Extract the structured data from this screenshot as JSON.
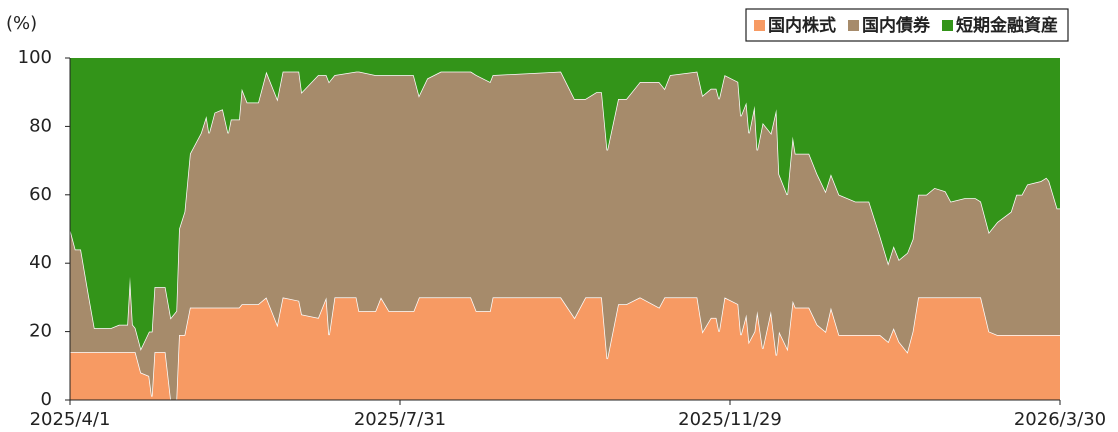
{
  "chart_data": {
    "type": "stacked_area",
    "y_axis_label": "(%)",
    "x": [
      "2025/4/1",
      "2025/4/3",
      "2025/4/5",
      "2025/4/8",
      "2025/4/10",
      "2025/4/16",
      "2025/4/19",
      "2025/4/22",
      "2025/4/23",
      "2025/4/24",
      "2025/4/25",
      "2025/4/27",
      "2025/4/30",
      "2025/5/1",
      "2025/5/2",
      "2025/5/6",
      "2025/5/8",
      "2025/5/10",
      "2025/5/11",
      "2025/5/13",
      "2025/5/15",
      "2025/5/19",
      "2025/5/21",
      "2025/5/22",
      "2025/5/24",
      "2025/5/27",
      "2025/5/29",
      "2025/5/30",
      "2025/6/2",
      "2025/6/3",
      "2025/6/5",
      "2025/6/9",
      "2025/6/12",
      "2025/6/16",
      "2025/6/18",
      "2025/6/24",
      "2025/6/25",
      "2025/7/1",
      "2025/7/4",
      "2025/7/5",
      "2025/7/7",
      "2025/7/15",
      "2025/7/16",
      "2025/7/22",
      "2025/7/24",
      "2025/7/27",
      "2025/7/30",
      "2025/8/5",
      "2025/8/7",
      "2025/8/10",
      "2025/8/15",
      "2025/8/26",
      "2025/8/28",
      "2025/9/2",
      "2025/9/3",
      "2025/9/28",
      "2025/10/3",
      "2025/10/7",
      "2025/10/11",
      "2025/10/13",
      "2025/10/15",
      "2025/10/19",
      "2025/10/22",
      "2025/10/27",
      "2025/11/3",
      "2025/11/5",
      "2025/11/7",
      "2025/11/17",
      "2025/11/19",
      "2025/11/22",
      "2025/11/24",
      "2025/11/25",
      "2025/11/27",
      "2025/12/2",
      "2025/12/3",
      "2025/12/5",
      "2025/12/6",
      "2025/12/8",
      "2025/12/9",
      "2025/12/11",
      "2025/12/14",
      "2025/12/16",
      "2025/12/17",
      "2025/12/20",
      "2025/12/22",
      "2025/12/23",
      "2025/12/28",
      "2025/12/31",
      "2026/1/3",
      "2026/1/5",
      "2026/1/8",
      "2026/1/14",
      "2026/1/19",
      "2026/1/23",
      "2026/1/26",
      "2026/1/28",
      "2026/1/30",
      "2026/2/2",
      "2026/2/4",
      "2026/2/6",
      "2026/2/9",
      "2026/2/12",
      "2026/2/16",
      "2026/2/18",
      "2026/2/23",
      "2026/2/27",
      "2026/3/1",
      "2026/3/4",
      "2026/3/7",
      "2026/3/12",
      "2026/3/14",
      "2026/3/16",
      "2026/3/18",
      "2026/3/23",
      "2026/3/25",
      "2026/3/26",
      "2026/3/29",
      "2026/3/30"
    ],
    "series": [
      {
        "name": "国内株式",
        "color": "#f79a63",
        "values": [
          14,
          14,
          14,
          14,
          14,
          14,
          14,
          14,
          14,
          14,
          14,
          8,
          7,
          1,
          14,
          14,
          0,
          0,
          19,
          19,
          27,
          27,
          27,
          27,
          27,
          27,
          27,
          27,
          27,
          28,
          28,
          28,
          30,
          22,
          30,
          29,
          25,
          24,
          30,
          19,
          30,
          30,
          26,
          26,
          30,
          26,
          26,
          26,
          30,
          30,
          30,
          30,
          26,
          26,
          30,
          30,
          24,
          30,
          30,
          30,
          12,
          28,
          28,
          30,
          27,
          30,
          30,
          30,
          20,
          24,
          24,
          20,
          30,
          28,
          19,
          25,
          17,
          20,
          26,
          15,
          26,
          13,
          20,
          15,
          29,
          27,
          27,
          22,
          20,
          27,
          19,
          19,
          19,
          19,
          17,
          21,
          17,
          14,
          20,
          30,
          30,
          30,
          30,
          30,
          30,
          30,
          30,
          20,
          19,
          19,
          19,
          19,
          19,
          19,
          19,
          19,
          19,
          19
        ]
      },
      {
        "name": "国内債券",
        "color": "#a68b6b",
        "values": [
          36,
          30,
          30,
          16,
          7,
          7,
          8,
          8,
          22,
          8,
          7,
          7,
          13,
          19,
          19,
          19,
          24,
          26,
          31,
          36,
          45,
          51,
          56,
          51,
          57,
          58,
          51,
          55,
          55,
          63,
          59,
          59,
          66,
          66,
          66,
          67,
          65,
          71,
          65,
          74,
          65,
          66,
          70,
          69,
          65,
          69,
          69,
          69,
          59,
          64,
          66,
          66,
          69,
          67,
          65,
          66,
          64,
          58,
          60,
          60,
          61,
          60,
          60,
          63,
          66,
          61,
          65,
          66,
          69,
          67,
          67,
          68,
          65,
          65,
          64,
          62,
          61,
          66,
          47,
          66,
          52,
          72,
          46,
          45,
          48,
          45,
          45,
          44,
          41,
          39,
          41,
          39,
          39,
          29,
          23,
          24,
          24,
          29,
          27,
          30,
          30,
          32,
          31,
          28,
          29,
          29,
          28,
          29,
          33,
          36,
          41,
          41,
          44,
          45,
          46,
          45,
          37,
          37
        ]
      },
      {
        "name": "短期金融資産",
        "color": "#339419",
        "values": [
          50,
          56,
          56,
          70,
          79,
          79,
          78,
          78,
          64,
          78,
          79,
          85,
          80,
          80,
          67,
          67,
          76,
          74,
          50,
          45,
          28,
          22,
          17,
          22,
          16,
          15,
          22,
          18,
          18,
          9,
          13,
          13,
          4,
          12,
          4,
          4,
          10,
          5,
          5,
          7,
          5,
          4,
          4,
          5,
          5,
          5,
          5,
          5,
          11,
          6,
          4,
          4,
          5,
          7,
          5,
          4,
          12,
          12,
          10,
          10,
          27,
          12,
          12,
          7,
          7,
          9,
          5,
          4,
          11,
          9,
          9,
          12,
          5,
          7,
          17,
          13,
          22,
          14,
          27,
          19,
          22,
          15,
          34,
          40,
          23,
          28,
          28,
          34,
          39,
          34,
          40,
          42,
          42,
          52,
          60,
          55,
          59,
          57,
          53,
          40,
          40,
          38,
          39,
          42,
          41,
          41,
          42,
          51,
          48,
          45,
          40,
          40,
          37,
          36,
          35,
          36,
          44,
          44
        ]
      }
    ],
    "xlim": [
      "2025/4/1",
      "2026/3/30"
    ],
    "xticks": [
      "2025/4/1",
      "2025/7/31",
      "2025/11/29",
      "2026/3/30"
    ],
    "ylim": [
      0,
      100
    ],
    "yticks": [
      0,
      20,
      40,
      60,
      80,
      100
    ],
    "legend": "top-right"
  }
}
